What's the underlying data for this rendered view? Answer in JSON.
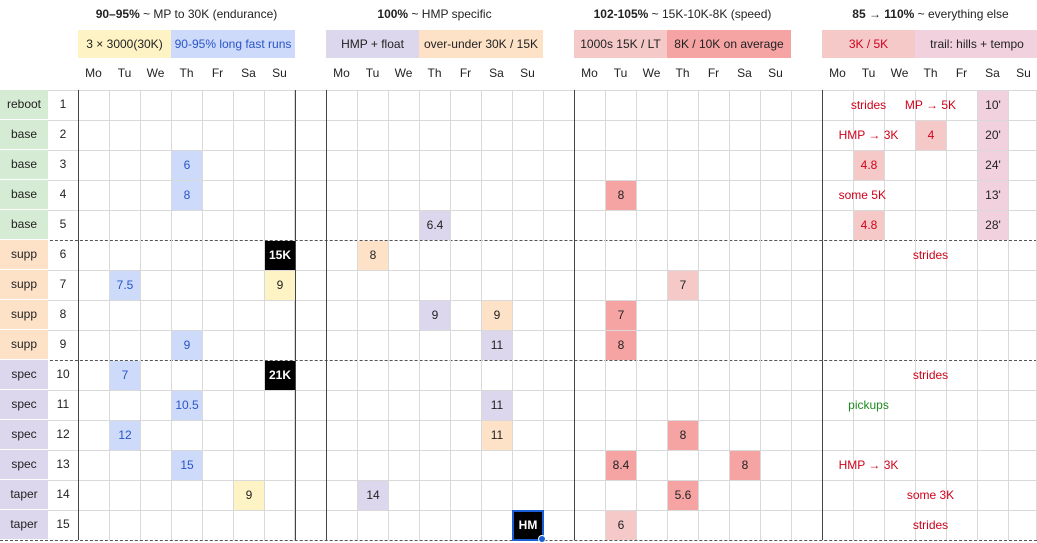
{
  "colors": {
    "yellow": "#fdf3c4",
    "blue": "#cddafa",
    "purple": "#ddd7ee",
    "peach": "#fde2c8",
    "salmon": "#f5a3a3",
    "pink_red": "#f6c9c9",
    "pink": "#f2d1de",
    "green": "#d5ebd3",
    "black": "#000000",
    "blue_text": "#2a55c8",
    "red_text": "#d0021b",
    "green_text": "#1f8a1f"
  },
  "groups": [
    {
      "bold": "90–95%",
      "rest": " ~ MP to 30K (endurance)"
    },
    {
      "bold": "100%",
      "rest": " ~ HMP specific"
    },
    {
      "bold": "102-105%",
      "rest": " ~ 15K-10K-8K (speed)"
    },
    {
      "bold": "85 → 110%",
      "rest": " ~ everything else"
    }
  ],
  "legends": [
    {
      "label": "3 × 3000(30K)",
      "color": "yellow",
      "text": "default"
    },
    {
      "label": "90-95% long fast runs",
      "color": "blue",
      "text": "blue_text"
    },
    {
      "label": "HMP + float",
      "color": "purple",
      "text": "default"
    },
    {
      "label": "over-under 30K / 15K",
      "color": "peach",
      "text": "default"
    },
    {
      "label": "1000s 15K / LT",
      "color": "pink_red",
      "text": "default"
    },
    {
      "label": "8K / 10K on average",
      "color": "salmon",
      "text": "default"
    },
    {
      "label": "3K / 5K",
      "color": "pink_red",
      "text": "red_text"
    },
    {
      "label": "trail: hills + tempo",
      "color": "pink",
      "text": "default"
    }
  ],
  "days": [
    "Mo",
    "Tu",
    "We",
    "Th",
    "Fr",
    "Sa",
    "Su"
  ],
  "weeks": [
    {
      "phase": "reboot",
      "num": "1",
      "color": "green"
    },
    {
      "phase": "base",
      "num": "2",
      "color": "green"
    },
    {
      "phase": "base",
      "num": "3",
      "color": "green"
    },
    {
      "phase": "base",
      "num": "4",
      "color": "green"
    },
    {
      "phase": "base",
      "num": "5",
      "color": "green"
    },
    {
      "phase": "supp",
      "num": "6",
      "color": "peach"
    },
    {
      "phase": "supp",
      "num": "7",
      "color": "peach"
    },
    {
      "phase": "supp",
      "num": "8",
      "color": "peach"
    },
    {
      "phase": "supp",
      "num": "9",
      "color": "peach"
    },
    {
      "phase": "spec",
      "num": "10",
      "color": "purple"
    },
    {
      "phase": "spec",
      "num": "11",
      "color": "purple"
    },
    {
      "phase": "spec",
      "num": "12",
      "color": "purple"
    },
    {
      "phase": "spec",
      "num": "13",
      "color": "purple"
    },
    {
      "phase": "taper",
      "num": "14",
      "color": "purple"
    },
    {
      "phase": "taper",
      "num": "15",
      "color": "purple"
    }
  ],
  "cells": [
    {
      "week": 3,
      "group": 0,
      "day": 3,
      "value": "6",
      "color": "blue",
      "text": "blue_text"
    },
    {
      "week": 4,
      "group": 0,
      "day": 3,
      "value": "8",
      "color": "blue",
      "text": "blue_text"
    },
    {
      "week": 6,
      "group": 0,
      "day": 6,
      "value": "15K",
      "color": "black",
      "text": "white"
    },
    {
      "week": 7,
      "group": 0,
      "day": 1,
      "value": "7.5",
      "color": "blue",
      "text": "blue_text"
    },
    {
      "week": 7,
      "group": 0,
      "day": 6,
      "value": "9",
      "color": "yellow",
      "text": "default"
    },
    {
      "week": 9,
      "group": 0,
      "day": 3,
      "value": "9",
      "color": "blue",
      "text": "blue_text"
    },
    {
      "week": 10,
      "group": 0,
      "day": 1,
      "value": "7",
      "color": "blue",
      "text": "blue_text"
    },
    {
      "week": 10,
      "group": 0,
      "day": 6,
      "value": "21K",
      "color": "black",
      "text": "white"
    },
    {
      "week": 11,
      "group": 0,
      "day": 3,
      "value": "10.5",
      "color": "blue",
      "text": "blue_text"
    },
    {
      "week": 12,
      "group": 0,
      "day": 1,
      "value": "12",
      "color": "blue",
      "text": "blue_text"
    },
    {
      "week": 13,
      "group": 0,
      "day": 3,
      "value": "15",
      "color": "blue",
      "text": "blue_text"
    },
    {
      "week": 14,
      "group": 0,
      "day": 5,
      "value": "9",
      "color": "yellow",
      "text": "default"
    },
    {
      "week": 5,
      "group": 1,
      "day": 3,
      "value": "6.4",
      "color": "purple",
      "text": "default"
    },
    {
      "week": 6,
      "group": 1,
      "day": 1,
      "value": "8",
      "color": "peach",
      "text": "default"
    },
    {
      "week": 8,
      "group": 1,
      "day": 3,
      "value": "9",
      "color": "purple",
      "text": "default"
    },
    {
      "week": 8,
      "group": 1,
      "day": 5,
      "value": "9",
      "color": "peach",
      "text": "default"
    },
    {
      "week": 9,
      "group": 1,
      "day": 5,
      "value": "11",
      "color": "purple",
      "text": "default"
    },
    {
      "week": 11,
      "group": 1,
      "day": 5,
      "value": "11",
      "color": "purple",
      "text": "default"
    },
    {
      "week": 12,
      "group": 1,
      "day": 5,
      "value": "11",
      "color": "peach",
      "text": "default"
    },
    {
      "week": 14,
      "group": 1,
      "day": 1,
      "value": "14",
      "color": "purple",
      "text": "default"
    },
    {
      "week": 15,
      "group": 1,
      "day": 6,
      "value": "HM",
      "color": "black",
      "text": "white",
      "selected": true
    },
    {
      "week": 4,
      "group": 2,
      "day": 1,
      "value": "8",
      "color": "salmon",
      "text": "default"
    },
    {
      "week": 7,
      "group": 2,
      "day": 3,
      "value": "7",
      "color": "pink_red",
      "text": "default"
    },
    {
      "week": 8,
      "group": 2,
      "day": 1,
      "value": "7",
      "color": "salmon",
      "text": "default"
    },
    {
      "week": 9,
      "group": 2,
      "day": 1,
      "value": "8",
      "color": "salmon",
      "text": "default"
    },
    {
      "week": 12,
      "group": 2,
      "day": 3,
      "value": "8",
      "color": "salmon",
      "text": "default"
    },
    {
      "week": 13,
      "group": 2,
      "day": 1,
      "value": "8.4",
      "color": "salmon",
      "text": "default"
    },
    {
      "week": 13,
      "group": 2,
      "day": 5,
      "value": "8",
      "color": "salmon",
      "text": "default"
    },
    {
      "week": 14,
      "group": 2,
      "day": 3,
      "value": "5.6",
      "color": "salmon",
      "text": "default"
    },
    {
      "week": 15,
      "group": 2,
      "day": 1,
      "value": "6",
      "color": "pink_red",
      "text": "default"
    },
    {
      "week": 2,
      "group": 3,
      "day": 3,
      "value": "4",
      "color": "pink_red",
      "text": "red_text"
    },
    {
      "week": 3,
      "group": 3,
      "day": 1,
      "value": "4.8",
      "color": "pink_red",
      "text": "red_text"
    },
    {
      "week": 5,
      "group": 3,
      "day": 1,
      "value": "4.8",
      "color": "pink_red",
      "text": "red_text"
    },
    {
      "week": 1,
      "group": 3,
      "day": 5,
      "value": "10'",
      "color": "pink",
      "text": "default"
    },
    {
      "week": 2,
      "group": 3,
      "day": 5,
      "value": "20'",
      "color": "pink",
      "text": "default"
    },
    {
      "week": 3,
      "group": 3,
      "day": 5,
      "value": "24'",
      "color": "pink",
      "text": "default"
    },
    {
      "week": 4,
      "group": 3,
      "day": 5,
      "value": "13'",
      "color": "pink",
      "text": "default"
    },
    {
      "week": 5,
      "group": 3,
      "day": 5,
      "value": "28'",
      "color": "pink",
      "text": "default"
    }
  ],
  "notes": [
    {
      "week": 1,
      "group": 3,
      "day": 1,
      "value": "strides",
      "text": "red_text"
    },
    {
      "week": 1,
      "group": 3,
      "day": 3,
      "value": "MP → 5K",
      "text": "red_text"
    },
    {
      "week": 2,
      "group": 3,
      "day": 1,
      "value": "HMP → 3K",
      "text": "red_text"
    },
    {
      "week": 4,
      "group": 3,
      "day": 0.8,
      "value": "some 5K",
      "text": "red_text"
    },
    {
      "week": 6,
      "group": 3,
      "day": 3,
      "value": "strides",
      "text": "red_text"
    },
    {
      "week": 10,
      "group": 3,
      "day": 3,
      "value": "strides",
      "text": "red_text"
    },
    {
      "week": 11,
      "group": 3,
      "day": 1,
      "value": "pickups",
      "text": "green_text"
    },
    {
      "week": 13,
      "group": 3,
      "day": 1,
      "value": "HMP → 3K",
      "text": "red_text"
    },
    {
      "week": 14,
      "group": 3,
      "day": 3,
      "value": "some 3K",
      "text": "red_text"
    },
    {
      "week": 15,
      "group": 3,
      "day": 3,
      "value": "strides",
      "text": "red_text"
    }
  ]
}
